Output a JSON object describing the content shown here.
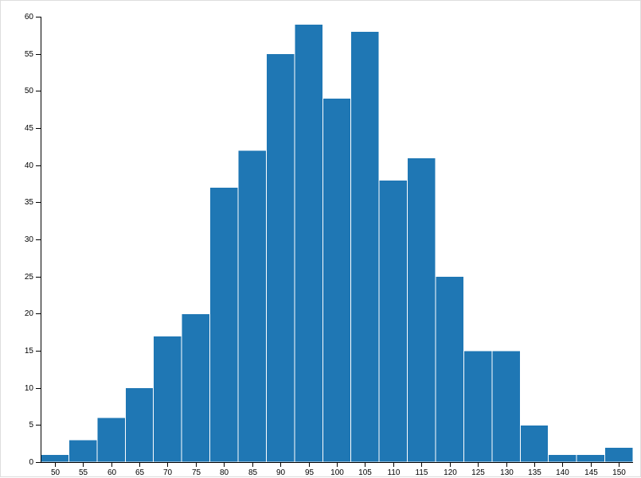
{
  "chart_data": {
    "type": "bar",
    "title": "",
    "xlabel": "",
    "ylabel": "",
    "bar_color": "#1f77b4",
    "bin_width": 5,
    "bins": [
      {
        "start": 47.5,
        "end": 52.5,
        "value": 1
      },
      {
        "start": 52.5,
        "end": 57.5,
        "value": 3
      },
      {
        "start": 57.5,
        "end": 62.5,
        "value": 6
      },
      {
        "start": 62.5,
        "end": 67.5,
        "value": 10
      },
      {
        "start": 67.5,
        "end": 72.5,
        "value": 17
      },
      {
        "start": 72.5,
        "end": 77.5,
        "value": 20
      },
      {
        "start": 77.5,
        "end": 82.5,
        "value": 37
      },
      {
        "start": 82.5,
        "end": 87.5,
        "value": 42
      },
      {
        "start": 87.5,
        "end": 92.5,
        "value": 55
      },
      {
        "start": 92.5,
        "end": 97.5,
        "value": 59
      },
      {
        "start": 97.5,
        "end": 102.5,
        "value": 49
      },
      {
        "start": 102.5,
        "end": 107.5,
        "value": 58
      },
      {
        "start": 107.5,
        "end": 112.5,
        "value": 38
      },
      {
        "start": 112.5,
        "end": 117.5,
        "value": 41
      },
      {
        "start": 117.5,
        "end": 122.5,
        "value": 25
      },
      {
        "start": 122.5,
        "end": 127.5,
        "value": 15
      },
      {
        "start": 127.5,
        "end": 132.5,
        "value": 15
      },
      {
        "start": 132.5,
        "end": 137.5,
        "value": 5
      },
      {
        "start": 137.5,
        "end": 142.5,
        "value": 1
      },
      {
        "start": 142.5,
        "end": 147.5,
        "value": 1
      },
      {
        "start": 147.5,
        "end": 152.5,
        "value": 2
      }
    ],
    "xlim": [
      47.5,
      152.5
    ],
    "ylim": [
      0,
      60
    ],
    "x_ticks": [
      50,
      55,
      60,
      65,
      70,
      75,
      80,
      85,
      90,
      95,
      100,
      105,
      110,
      115,
      120,
      125,
      130,
      135,
      140,
      145,
      150
    ],
    "y_ticks": [
      0,
      5,
      10,
      15,
      20,
      25,
      30,
      35,
      40,
      45,
      50,
      55,
      60
    ],
    "grid": false,
    "legend": "none"
  }
}
